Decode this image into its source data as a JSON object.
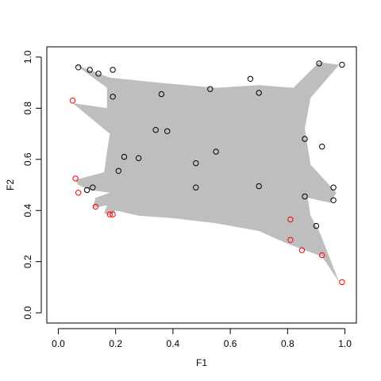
{
  "chart_data": {
    "type": "scatter",
    "title": "",
    "xlabel": "F1",
    "ylabel": "F2",
    "xlim": [
      -0.04,
      1.04
    ],
    "ylim": [
      -0.04,
      1.04
    ],
    "x_ticks": [
      "0.0",
      "0.2",
      "0.4",
      "0.6",
      "0.8",
      "1.0"
    ],
    "y_ticks": [
      "0.0",
      "0.2",
      "0.4",
      "0.6",
      "0.8",
      "1.0"
    ],
    "grid": false,
    "legend": "none",
    "background_region": {
      "color": "#bebebe",
      "polygon": [
        [
          0.06,
          0.97
        ],
        [
          0.18,
          0.92
        ],
        [
          0.35,
          0.9
        ],
        [
          0.55,
          0.88
        ],
        [
          0.7,
          0.89
        ],
        [
          0.82,
          0.88
        ],
        [
          0.91,
          0.98
        ],
        [
          0.98,
          0.97
        ],
        [
          0.88,
          0.84
        ],
        [
          0.86,
          0.72
        ],
        [
          0.88,
          0.58
        ],
        [
          0.97,
          0.47
        ],
        [
          0.95,
          0.43
        ],
        [
          0.87,
          0.45
        ],
        [
          0.88,
          0.38
        ],
        [
          0.91,
          0.32
        ],
        [
          0.98,
          0.12
        ],
        [
          0.92,
          0.22
        ],
        [
          0.8,
          0.27
        ],
        [
          0.7,
          0.32
        ],
        [
          0.55,
          0.35
        ],
        [
          0.4,
          0.37
        ],
        [
          0.28,
          0.38
        ],
        [
          0.2,
          0.4
        ],
        [
          0.18,
          0.38
        ],
        [
          0.16,
          0.39
        ],
        [
          0.17,
          0.42
        ],
        [
          0.12,
          0.41
        ],
        [
          0.13,
          0.45
        ],
        [
          0.18,
          0.47
        ],
        [
          0.11,
          0.48
        ],
        [
          0.07,
          0.5
        ],
        [
          0.06,
          0.52
        ],
        [
          0.16,
          0.55
        ],
        [
          0.17,
          0.63
        ],
        [
          0.18,
          0.7
        ],
        [
          0.05,
          0.82
        ],
        [
          0.17,
          0.8
        ],
        [
          0.17,
          0.88
        ]
      ]
    },
    "series": [
      {
        "color": "#000000",
        "points": [
          [
            0.07,
            0.96
          ],
          [
            0.11,
            0.95
          ],
          [
            0.14,
            0.935
          ],
          [
            0.19,
            0.95
          ],
          [
            0.19,
            0.845
          ],
          [
            0.36,
            0.855
          ],
          [
            0.53,
            0.875
          ],
          [
            0.67,
            0.915
          ],
          [
            0.7,
            0.86
          ],
          [
            0.91,
            0.975
          ],
          [
            0.99,
            0.97
          ],
          [
            0.34,
            0.715
          ],
          [
            0.38,
            0.71
          ],
          [
            0.86,
            0.68
          ],
          [
            0.92,
            0.65
          ],
          [
            0.23,
            0.61
          ],
          [
            0.28,
            0.605
          ],
          [
            0.55,
            0.63
          ],
          [
            0.48,
            0.585
          ],
          [
            0.21,
            0.555
          ],
          [
            0.48,
            0.49
          ],
          [
            0.7,
            0.495
          ],
          [
            0.12,
            0.49
          ],
          [
            0.1,
            0.48
          ],
          [
            0.86,
            0.455
          ],
          [
            0.96,
            0.49
          ],
          [
            0.96,
            0.44
          ],
          [
            0.9,
            0.34
          ]
        ]
      },
      {
        "color": "#ff0000",
        "points": [
          [
            0.05,
            0.83
          ],
          [
            0.06,
            0.525
          ],
          [
            0.07,
            0.47
          ],
          [
            0.13,
            0.415
          ],
          [
            0.18,
            0.385
          ],
          [
            0.19,
            0.385
          ],
          [
            0.81,
            0.365
          ],
          [
            0.81,
            0.285
          ],
          [
            0.85,
            0.245
          ],
          [
            0.92,
            0.225
          ],
          [
            0.99,
            0.12
          ]
        ]
      }
    ]
  }
}
